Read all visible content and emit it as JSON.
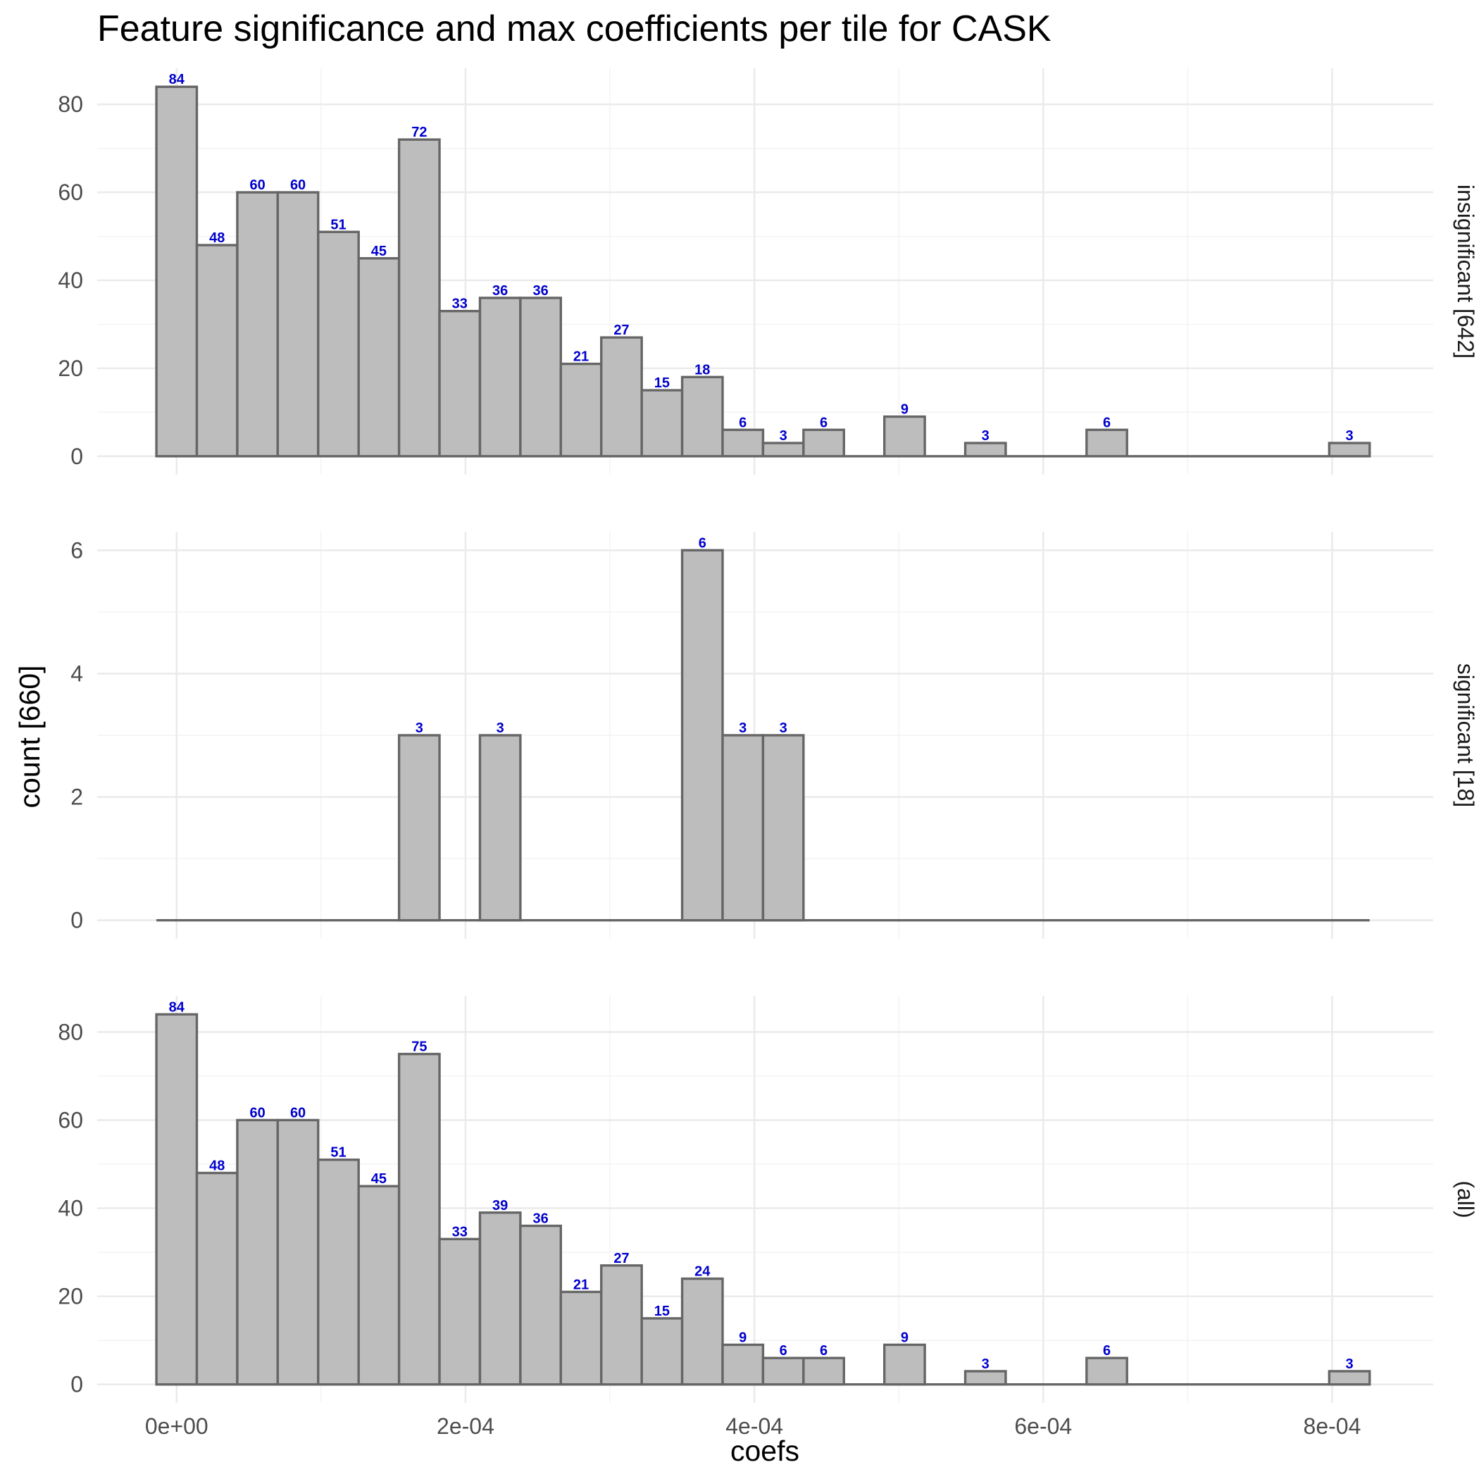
{
  "chart_data": {
    "type": "bar",
    "title": "Feature significance and max coefficients per tile for CASK",
    "xlabel": "coefs",
    "ylabel": "count [660]",
    "x_ticks": [
      "0e+00",
      "2e-04",
      "4e-04",
      "6e-04",
      "8e-04"
    ],
    "x_tick_values": [
      0,
      0.0002,
      0.0004,
      0.0006,
      0.0008
    ],
    "xlim": [
      -5.5e-05,
      0.00087
    ],
    "bin_width": 2.8e-05,
    "bin_centers": [
      0.0,
      2.8e-05,
      5.6e-05,
      8.4e-05,
      0.000112,
      0.00014,
      0.000168,
      0.000196,
      0.000224,
      0.000252,
      0.00028,
      0.000308,
      0.000336,
      0.000364,
      0.000392,
      0.00042,
      0.000448,
      0.000476,
      0.000504,
      0.000532,
      0.00056,
      0.000588,
      0.000616,
      0.000644,
      0.000672,
      0.0007,
      0.000728,
      0.000756,
      0.000784,
      0.000812
    ],
    "grid": true,
    "panels": [
      {
        "strip_label": "insignificant [642]",
        "y_ticks": [
          "0",
          "20",
          "40",
          "60",
          "80"
        ],
        "y_tick_values": [
          0,
          20,
          40,
          60,
          80
        ],
        "ylim": [
          -4.2,
          88.2
        ],
        "values": [
          84,
          48,
          60,
          60,
          51,
          45,
          72,
          33,
          36,
          36,
          21,
          27,
          15,
          18,
          6,
          3,
          6,
          0,
          9,
          0,
          3,
          0,
          0,
          6,
          0,
          0,
          0,
          0,
          0,
          3
        ]
      },
      {
        "strip_label": "significant [18]",
        "y_ticks": [
          "0",
          "2",
          "4",
          "6"
        ],
        "y_tick_values": [
          0,
          2,
          4,
          6
        ],
        "ylim": [
          -0.3,
          6.3
        ],
        "values": [
          0,
          0,
          0,
          0,
          0,
          0,
          3,
          0,
          3,
          0,
          0,
          0,
          0,
          6,
          3,
          3,
          0,
          0,
          0,
          0,
          0,
          0,
          0,
          0,
          0,
          0,
          0,
          0,
          0,
          0
        ]
      },
      {
        "strip_label": "(all)",
        "y_ticks": [
          "0",
          "20",
          "40",
          "60",
          "80"
        ],
        "y_tick_values": [
          0,
          20,
          40,
          60,
          80
        ],
        "ylim": [
          -4.2,
          88.2
        ],
        "values": [
          84,
          48,
          60,
          60,
          51,
          45,
          75,
          33,
          39,
          36,
          21,
          27,
          15,
          24,
          9,
          6,
          6,
          0,
          9,
          0,
          3,
          0,
          0,
          6,
          0,
          0,
          0,
          0,
          0,
          3
        ]
      }
    ]
  }
}
